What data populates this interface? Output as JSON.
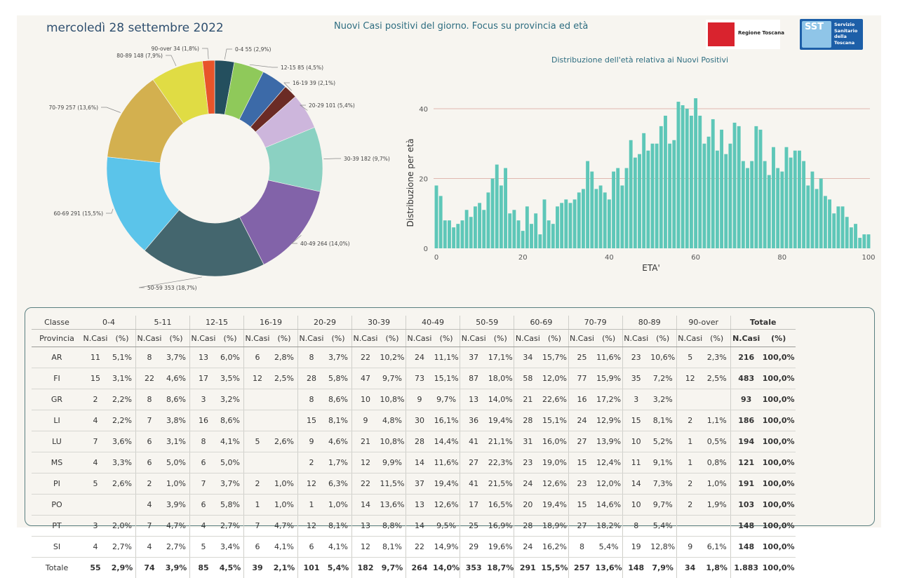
{
  "header": {
    "date": "mercoledì 28 settembre 2022",
    "title": "Nuovi Casi positivi del giorno. Focus su provincia ed età",
    "logo_rt": "Regione Toscana",
    "logo_sst_mark": "SST",
    "logo_sst_lines": [
      "Servizio",
      "Sanitario",
      "della",
      "Toscana"
    ]
  },
  "chart_data": [
    {
      "type": "pie",
      "subtype": "donut",
      "slices": [
        {
          "label": "0-4 55 (2,9%)",
          "value": 55,
          "color": "#244f5e"
        },
        {
          "label": "12-15 85 (4,5%)",
          "value": 85,
          "color": "#8fc95a"
        },
        {
          "label": "",
          "value": 74,
          "color": "#3c6aa8"
        },
        {
          "label": "16-19 39 (2,1%)",
          "value": 39,
          "color": "#6b2b25"
        },
        {
          "label": "20-29 101 (5,4%)",
          "value": 101,
          "color": "#cdb6dc"
        },
        {
          "label": "30-39 182 (9,7%)",
          "value": 182,
          "color": "#8bd1c2"
        },
        {
          "label": "40-49 264 (14,0%)",
          "value": 264,
          "color": "#8263a9"
        },
        {
          "label": "50-59 353 (18,7%)",
          "value": 353,
          "color": "#44666e"
        },
        {
          "label": "60-69 291 (15,5%)",
          "value": 291,
          "color": "#5bc4ea"
        },
        {
          "label": "70-79 257 (13,6%)",
          "value": 257,
          "color": "#d3b04f"
        },
        {
          "label": "80-89 148 (7,9%)",
          "value": 148,
          "color": "#e0dc44"
        },
        {
          "label": "90-over 34 (1,8%)",
          "value": 34,
          "color": "#e8542a"
        }
      ]
    },
    {
      "type": "bar",
      "title": "Distribuzione dell'età relativa ai Nuovi Positivi",
      "xlabel": "ETA'",
      "ylabel": "Distribuzione per età",
      "color": "#5ec7b8",
      "xlim": [
        0,
        100
      ],
      "ylim": [
        0,
        45
      ],
      "xticks": [
        "0",
        "20",
        "40",
        "60",
        "80",
        "100"
      ],
      "yticks": [
        "0",
        "20",
        "40"
      ],
      "x_start": 0,
      "values": [
        18,
        15,
        8,
        8,
        6,
        7,
        8,
        11,
        9,
        12,
        13,
        11,
        16,
        20,
        24,
        18,
        23,
        10,
        11,
        8,
        5,
        12,
        7,
        10,
        4,
        14,
        8,
        7,
        12,
        13,
        14,
        13,
        14,
        16,
        17,
        25,
        22,
        17,
        18,
        16,
        14,
        22,
        23,
        18,
        23,
        31,
        26,
        27,
        33,
        28,
        30,
        30,
        35,
        38,
        30,
        31,
        42,
        41,
        40,
        38,
        43,
        38,
        30,
        32,
        37,
        28,
        34,
        27,
        30,
        36,
        35,
        25,
        23,
        25,
        35,
        34,
        25,
        21,
        29,
        23,
        22,
        29,
        26,
        28,
        28,
        25,
        18,
        22,
        17,
        20,
        15,
        14,
        10,
        12,
        12,
        9,
        6,
        7,
        3,
        4,
        4
      ]
    }
  ],
  "table": {
    "col1_head": "Classe",
    "col1_sub": "Provincia",
    "groups": [
      "0-4",
      "5-11",
      "12-15",
      "16-19",
      "20-29",
      "30-39",
      "40-49",
      "50-59",
      "60-69",
      "70-79",
      "80-89",
      "90-over",
      "Totale"
    ],
    "sub_n": "N.Casi",
    "sub_p": "(%)",
    "rows": [
      [
        "AR",
        "11",
        "5,1%",
        "8",
        "3,7%",
        "13",
        "6,0%",
        "6",
        "2,8%",
        "8",
        "3,7%",
        "22",
        "10,2%",
        "24",
        "11,1%",
        "37",
        "17,1%",
        "34",
        "15,7%",
        "25",
        "11,6%",
        "23",
        "10,6%",
        "5",
        "2,3%",
        "216",
        "100,0%"
      ],
      [
        "FI",
        "15",
        "3,1%",
        "22",
        "4,6%",
        "17",
        "3,5%",
        "12",
        "2,5%",
        "28",
        "5,8%",
        "47",
        "9,7%",
        "73",
        "15,1%",
        "87",
        "18,0%",
        "58",
        "12,0%",
        "77",
        "15,9%",
        "35",
        "7,2%",
        "12",
        "2,5%",
        "483",
        "100,0%"
      ],
      [
        "GR",
        "2",
        "2,2%",
        "8",
        "8,6%",
        "3",
        "3,2%",
        "",
        "",
        "8",
        "8,6%",
        "10",
        "10,8%",
        "9",
        "9,7%",
        "13",
        "14,0%",
        "21",
        "22,6%",
        "16",
        "17,2%",
        "3",
        "3,2%",
        "",
        "",
        "93",
        "100,0%"
      ],
      [
        "LI",
        "4",
        "2,2%",
        "7",
        "3,8%",
        "16",
        "8,6%",
        "",
        "",
        "15",
        "8,1%",
        "9",
        "4,8%",
        "30",
        "16,1%",
        "36",
        "19,4%",
        "28",
        "15,1%",
        "24",
        "12,9%",
        "15",
        "8,1%",
        "2",
        "1,1%",
        "186",
        "100,0%"
      ],
      [
        "LU",
        "7",
        "3,6%",
        "6",
        "3,1%",
        "8",
        "4,1%",
        "5",
        "2,6%",
        "9",
        "4,6%",
        "21",
        "10,8%",
        "28",
        "14,4%",
        "41",
        "21,1%",
        "31",
        "16,0%",
        "27",
        "13,9%",
        "10",
        "5,2%",
        "1",
        "0,5%",
        "194",
        "100,0%"
      ],
      [
        "MS",
        "4",
        "3,3%",
        "6",
        "5,0%",
        "6",
        "5,0%",
        "",
        "",
        "2",
        "1,7%",
        "12",
        "9,9%",
        "14",
        "11,6%",
        "27",
        "22,3%",
        "23",
        "19,0%",
        "15",
        "12,4%",
        "11",
        "9,1%",
        "1",
        "0,8%",
        "121",
        "100,0%"
      ],
      [
        "PI",
        "5",
        "2,6%",
        "2",
        "1,0%",
        "7",
        "3,7%",
        "2",
        "1,0%",
        "12",
        "6,3%",
        "22",
        "11,5%",
        "37",
        "19,4%",
        "41",
        "21,5%",
        "24",
        "12,6%",
        "23",
        "12,0%",
        "14",
        "7,3%",
        "2",
        "1,0%",
        "191",
        "100,0%"
      ],
      [
        "PO",
        "",
        "",
        "4",
        "3,9%",
        "6",
        "5,8%",
        "1",
        "1,0%",
        "1",
        "1,0%",
        "14",
        "13,6%",
        "13",
        "12,6%",
        "17",
        "16,5%",
        "20",
        "19,4%",
        "15",
        "14,6%",
        "10",
        "9,7%",
        "2",
        "1,9%",
        "103",
        "100,0%"
      ],
      [
        "PT",
        "3",
        "2,0%",
        "7",
        "4,7%",
        "4",
        "2,7%",
        "7",
        "4,7%",
        "12",
        "8,1%",
        "13",
        "8,8%",
        "14",
        "9,5%",
        "25",
        "16,9%",
        "28",
        "18,9%",
        "27",
        "18,2%",
        "8",
        "5,4%",
        "",
        "",
        "148",
        "100,0%"
      ],
      [
        "SI",
        "4",
        "2,7%",
        "4",
        "2,7%",
        "5",
        "3,4%",
        "6",
        "4,1%",
        "6",
        "4,1%",
        "12",
        "8,1%",
        "22",
        "14,9%",
        "29",
        "19,6%",
        "24",
        "16,2%",
        "8",
        "5,4%",
        "19",
        "12,8%",
        "9",
        "6,1%",
        "148",
        "100,0%"
      ]
    ],
    "total": [
      "Totale",
      "55",
      "2,9%",
      "74",
      "3,9%",
      "85",
      "4,5%",
      "39",
      "2,1%",
      "101",
      "5,4%",
      "182",
      "9,7%",
      "264",
      "14,0%",
      "353",
      "18,7%",
      "291",
      "15,5%",
      "257",
      "13,6%",
      "148",
      "7,9%",
      "34",
      "1,8%",
      "1.883",
      "100,0%"
    ]
  }
}
